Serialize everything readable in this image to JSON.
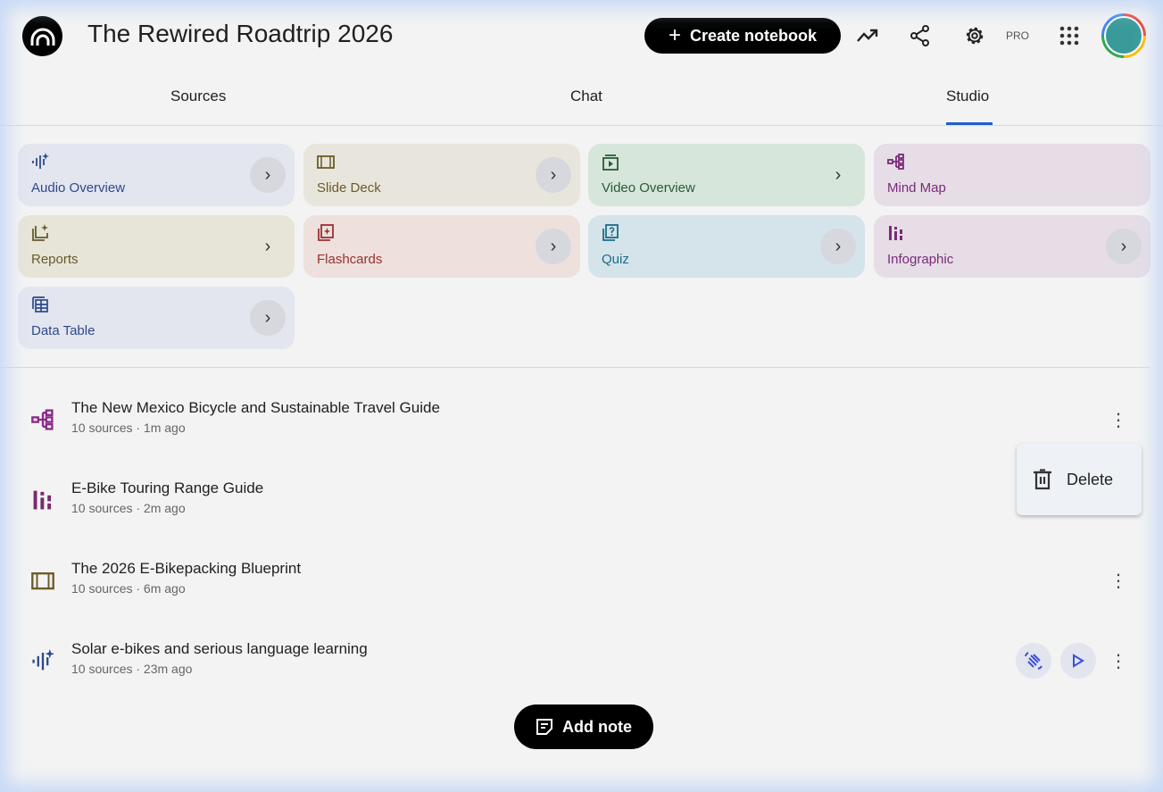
{
  "header": {
    "title": "The Rewired Roadtrip 2026",
    "create_label": "Create notebook",
    "pro_label": "PRO"
  },
  "tabs": [
    {
      "label": "Sources"
    },
    {
      "label": "Chat"
    },
    {
      "label": "Studio",
      "active": true
    }
  ],
  "studio_tools": [
    {
      "label": "Audio Overview",
      "icon": "audio-waveform-sparkle-icon",
      "bg": "#e3e5ef",
      "color": "#2d4a8a"
    },
    {
      "label": "Slide Deck",
      "icon": "slides-icon",
      "bg": "#e8e6dc",
      "color": "#6b5a2a"
    },
    {
      "label": "Video Overview",
      "icon": "video-icon",
      "bg": "#d6e6da",
      "color": "#2a5a36"
    },
    {
      "label": "Mind Map",
      "icon": "mind-map-icon",
      "bg": "#e6dde6",
      "color": "#7a2a7a"
    },
    {
      "label": "Reports",
      "icon": "reports-icon",
      "bg": "#e7e5d8",
      "color": "#665a2a"
    },
    {
      "label": "Flashcards",
      "icon": "flashcards-icon",
      "bg": "#ede0dd",
      "color": "#9a3030"
    },
    {
      "label": "Quiz",
      "icon": "quiz-icon",
      "bg": "#d4e4ea",
      "color": "#1c6a8a"
    },
    {
      "label": "Infographic",
      "icon": "infographic-icon",
      "bg": "#e6dde6",
      "color": "#7a2a7a"
    },
    {
      "label": "Data Table",
      "icon": "data-table-icon",
      "bg": "#e3e5ef",
      "color": "#2d4a8a"
    }
  ],
  "notes": [
    {
      "title": "The New Mexico Bicycle and Sustainable Travel Guide",
      "meta": "10 sources · 1m ago",
      "icon": "mind-map-icon"
    },
    {
      "title": "E-Bike Touring Range Guide",
      "meta": "10 sources · 2m ago",
      "icon": "infographic-icon"
    },
    {
      "title": "The 2026 E-Bikepacking Blueprint",
      "meta": "10 sources · 6m ago",
      "icon": "slides-icon"
    },
    {
      "title": "Solar e-bikes and serious language learning",
      "meta": "10 sources · 23m ago",
      "icon": "audio-waveform-sparkle-icon"
    }
  ],
  "context_menu": {
    "delete_label": "Delete"
  },
  "add_note_label": "Add note"
}
